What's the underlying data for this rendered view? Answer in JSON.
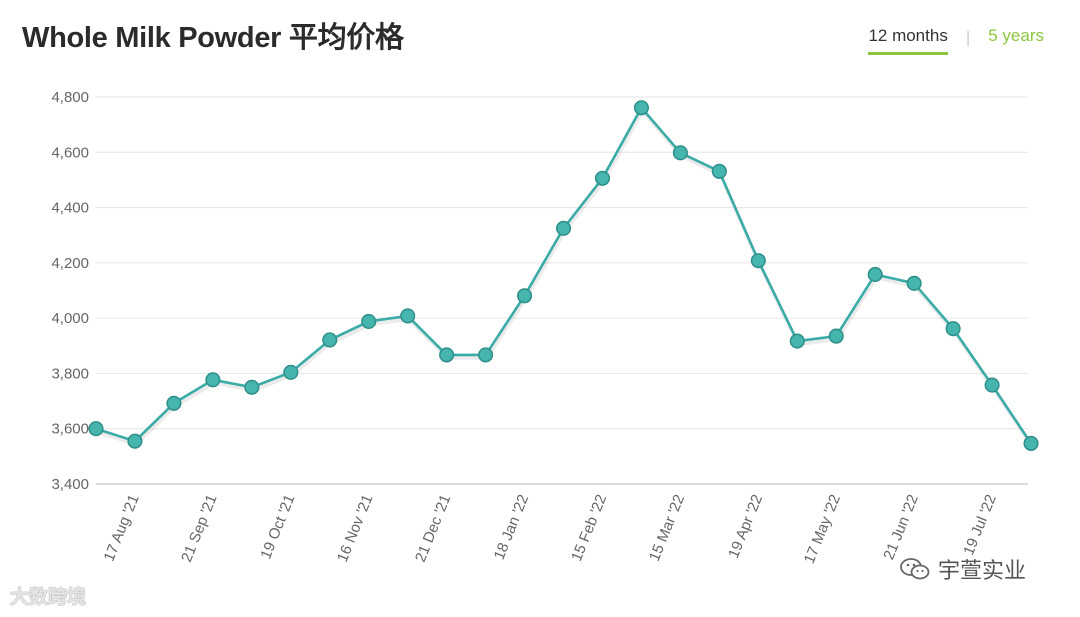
{
  "header": {
    "title": "Whole Milk Powder 平均价格",
    "tabs": [
      {
        "label": "12 months",
        "active": true
      },
      {
        "label": "5 years",
        "active": false
      }
    ]
  },
  "colors": {
    "series": "#3aaba6",
    "marker_fill": "#46b5ae",
    "tab_accent": "#8cc63f",
    "grid": "#e6e6e6",
    "tick_label": "#666666"
  },
  "watermarks": {
    "left": "大数跨境",
    "right": "宇萱实业",
    "right_icon": "wechat-icon"
  },
  "chart_data": {
    "type": "line",
    "title": "Whole Milk Powder 平均价格",
    "xlabel": "",
    "ylabel": "",
    "ylim": [
      3400,
      4800
    ],
    "yticks": [
      4800,
      4600,
      4400,
      4200,
      4000,
      3800,
      3600,
      3400
    ],
    "ytick_labels": [
      "4,800",
      "4,600",
      "4,400",
      "4,200",
      "4,000",
      "3,800",
      "3,600",
      "3,400"
    ],
    "grid": true,
    "legend": "none",
    "xtick_labels": [
      {
        "label": "17 Aug '21",
        "index": 1
      },
      {
        "label": "21 Sep '21",
        "index": 3
      },
      {
        "label": "19 Oct '21",
        "index": 5
      },
      {
        "label": "16 Nov '21",
        "index": 7
      },
      {
        "label": "21 Dec '21",
        "index": 9
      },
      {
        "label": "18 Jan '22",
        "index": 11
      },
      {
        "label": "15 Feb '22",
        "index": 13
      },
      {
        "label": "15 Mar '22",
        "index": 15
      },
      {
        "label": "19 Apr '22",
        "index": 17
      },
      {
        "label": "17 May '22",
        "index": 19
      },
      {
        "label": "21 Jun '22",
        "index": 21
      },
      {
        "label": "19 Jul '22",
        "index": 23
      }
    ],
    "series": [
      {
        "values": [
          3600,
          3555,
          3692,
          3777,
          3750,
          3804,
          3921,
          3988,
          4008,
          3867,
          3867,
          4081,
          4325,
          4506,
          4761,
          4598,
          4531,
          4208,
          3917,
          3935,
          4158,
          4126,
          3962,
          3758,
          3547
        ]
      }
    ]
  }
}
